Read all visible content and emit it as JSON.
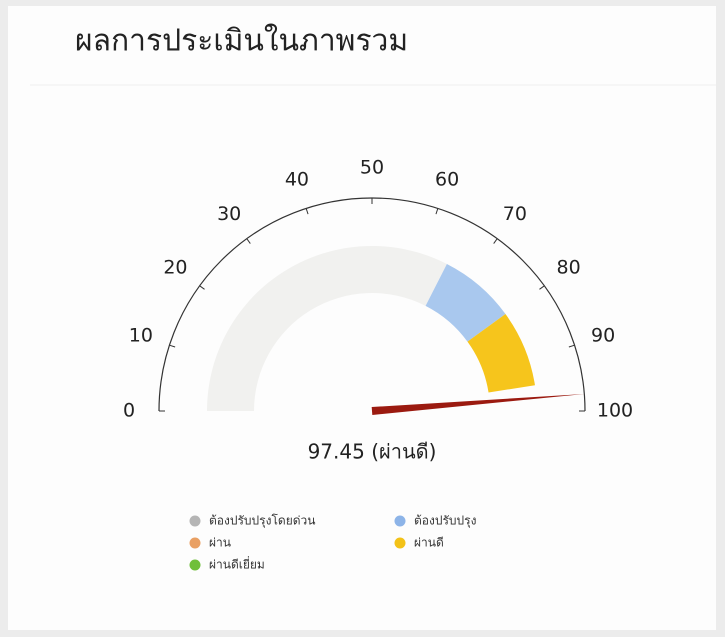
{
  "chart_data": {
    "type": "gauge",
    "title": "ผลการประเมินในภาพรวม",
    "value": 97.45,
    "value_labels": [
      "97.45 (ผ่านดี)"
    ],
    "ylim": [
      0,
      100
    ],
    "yticks": [
      0,
      10,
      20,
      30,
      40,
      50,
      60,
      70,
      80,
      90,
      100
    ],
    "needle_color": "#9b1a10",
    "bands": [
      {
        "from": 0,
        "to": 65,
        "color": "#f1f1ef"
      },
      {
        "from": 65,
        "to": 80,
        "color": "#a9c8ee"
      },
      {
        "from": 80,
        "to": 95,
        "color": "#f6c51c"
      }
    ],
    "series": [
      {
        "name": "ต้องปรับปรุงโดยด่วน",
        "color": "#b5b5b5"
      },
      {
        "name": "ต้องปรับปรุง",
        "color": "#8db4e8"
      },
      {
        "name": "ผ่าน",
        "color": "#e9a063"
      },
      {
        "name": "ผ่านดี",
        "color": "#f3c218"
      },
      {
        "name": "ผ่านดีเยี่ยม",
        "color": "#6fbf3a"
      }
    ]
  }
}
